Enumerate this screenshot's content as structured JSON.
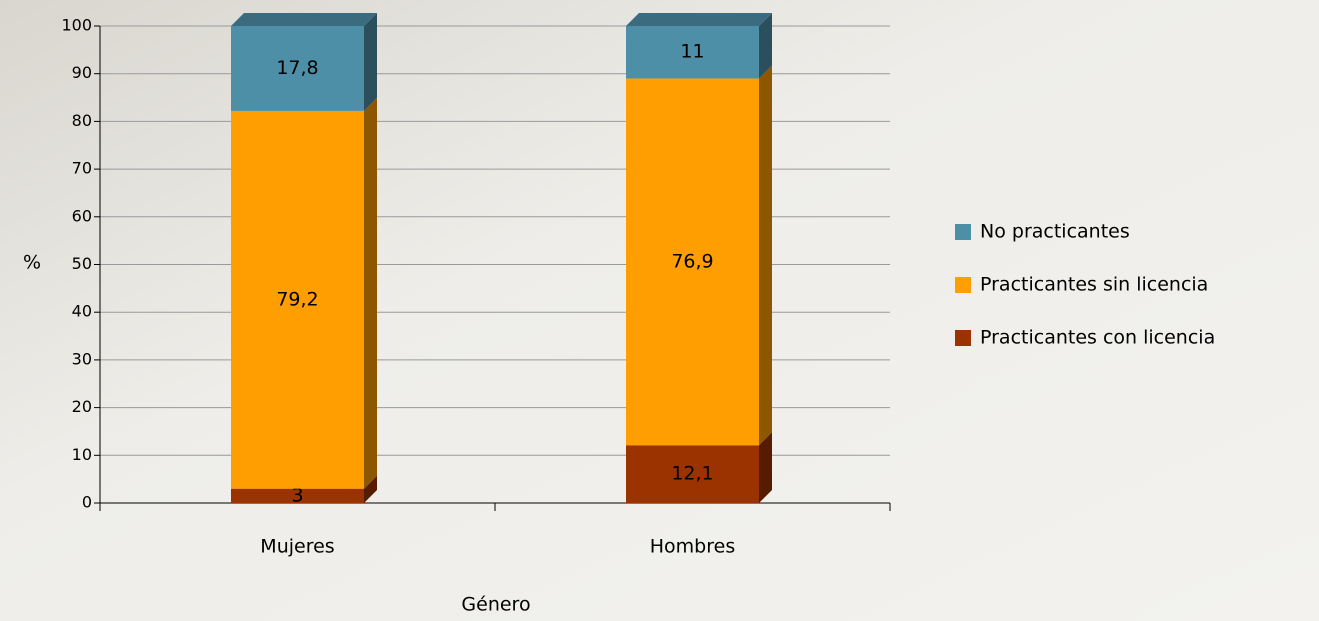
{
  "chart_data": {
    "type": "stacked-bar",
    "x_label": "Género",
    "y_label": "%",
    "categories": [
      "Mujeres",
      "Hombres"
    ],
    "series": [
      {
        "name": "Practicantes con licencia",
        "color": "#9b3300",
        "values": [
          3,
          12.1
        ],
        "value_labels": [
          "3",
          "12,1"
        ]
      },
      {
        "name": "Practicantes sin licencia",
        "color": "#ff9e00",
        "values": [
          79.2,
          76.9
        ],
        "value_labels": [
          "79,2",
          "76,9"
        ]
      },
      {
        "name": "No practicantes",
        "color": "#4e8fa8",
        "values": [
          17.8,
          11
        ],
        "value_labels": [
          "17,8",
          "11"
        ]
      }
    ],
    "ylim": [
      0,
      100
    ],
    "yticks": [
      0,
      10,
      20,
      30,
      40,
      50,
      60,
      70,
      80,
      90,
      100
    ],
    "grid": true
  }
}
